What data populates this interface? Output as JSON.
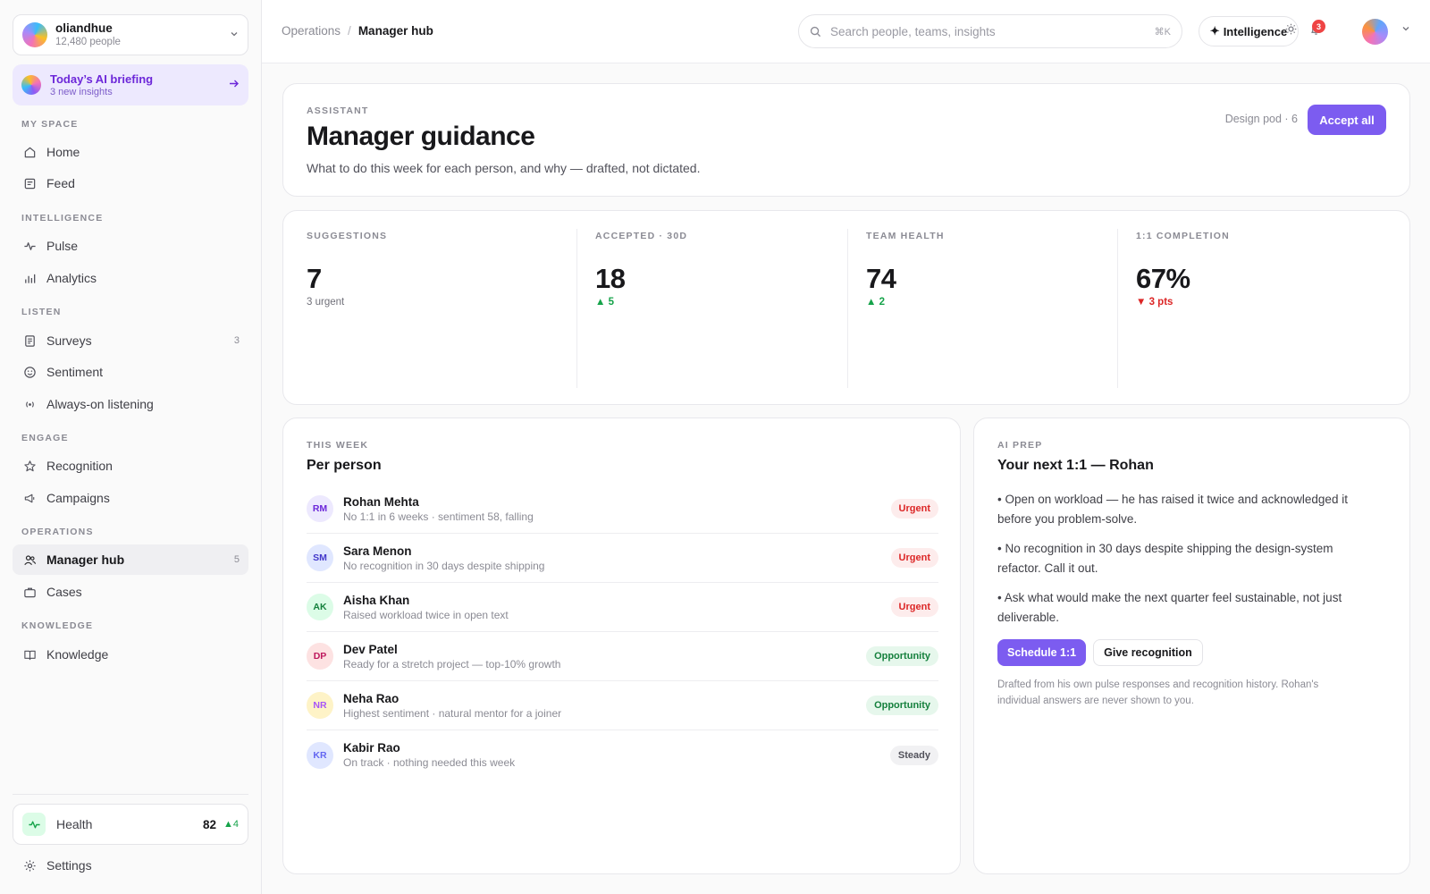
{
  "org": {
    "name": "oliandhue",
    "people": "12,480 people"
  },
  "briefing": {
    "title": "Today’s AI briefing",
    "subtitle": "3 new insights"
  },
  "sidebar": {
    "sections": {
      "my_space": "MY SPACE",
      "intelligence": "INTELLIGENCE",
      "listen": "LISTEN",
      "engage": "ENGAGE",
      "operations": "OPERATIONS",
      "knowledge": "KNOWLEDGE"
    },
    "items": {
      "home": "Home",
      "feed": "Feed",
      "pulse": "Pulse",
      "analytics": "Analytics",
      "surveys": "Surveys",
      "surveys_count": "3",
      "sentiment": "Sentiment",
      "always_on": "Always-on listening",
      "recognition": "Recognition",
      "campaigns": "Campaigns",
      "manager_hub": "Manager hub",
      "manager_hub_count": "5",
      "cases": "Cases",
      "knowledge": "Knowledge"
    },
    "health": {
      "label": "Health",
      "value": "82",
      "delta": "4"
    },
    "settings": "Settings"
  },
  "topbar": {
    "breadcrumb_parent": "Operations",
    "breadcrumb_sep": "/",
    "breadcrumb_current": "Manager hub",
    "search_placeholder": "Search people, teams, insights",
    "search_shortcut": "⌘K",
    "intelligence_label": "Intelligence",
    "notifications_count": "3"
  },
  "guidance": {
    "eyebrow": "ASSISTANT",
    "title": "Manager guidance",
    "description": "What to do this week for each person, and why — drafted, not dictated.",
    "pod": "Design pod · 6",
    "accept_all": "Accept all"
  },
  "stats": [
    {
      "label": "SUGGESTIONS",
      "value": "7",
      "sub": "3 urgent",
      "trend": "neutral"
    },
    {
      "label": "ACCEPTED · 30D",
      "value": "18",
      "sub": "▲ 5",
      "trend": "up"
    },
    {
      "label": "TEAM HEALTH",
      "value": "74",
      "sub": "▲ 2",
      "trend": "up"
    },
    {
      "label": "1:1 COMPLETION",
      "value": "67%",
      "sub": "▼ 3 pts",
      "trend": "down"
    }
  ],
  "per_person": {
    "eyebrow": "THIS WEEK",
    "title": "Per person",
    "people": [
      {
        "initials": "RM",
        "name": "Rohan Mehta",
        "desc": "No 1:1 in 6 weeks · sentiment 58, falling",
        "tag": "Urgent"
      },
      {
        "initials": "SM",
        "name": "Sara Menon",
        "desc": "No recognition in 30 days despite shipping",
        "tag": "Urgent"
      },
      {
        "initials": "AK",
        "name": "Aisha Khan",
        "desc": "Raised workload twice in open text",
        "tag": "Urgent"
      },
      {
        "initials": "DP",
        "name": "Dev Patel",
        "desc": "Ready for a stretch project — top-10% growth",
        "tag": "Opportunity"
      },
      {
        "initials": "NR",
        "name": "Neha Rao",
        "desc": "Highest sentiment · natural mentor for a joiner",
        "tag": "Opportunity"
      },
      {
        "initials": "KR",
        "name": "Kabir Rao",
        "desc": "On track · nothing needed this week",
        "tag": "Steady"
      }
    ]
  },
  "ai_prep": {
    "eyebrow": "AI PREP",
    "title": "Your next 1:1 — Rohan",
    "bullets": [
      "• Open on workload — he has raised it twice and acknowledged it before you problem-solve.",
      "• No recognition in 30 days despite shipping the design-system refactor. Call it out.",
      "• Ask what would make the next quarter feel sustainable, not just deliverable."
    ],
    "schedule": "Schedule 1:1",
    "give_recognition": "Give recognition",
    "note": "Drafted from his own pulse responses and recognition history. Rohan's individual answers are never shown to you."
  },
  "colors": {
    "accent": "#7c5cf0",
    "urgent": "#dc2626",
    "opportunity": "#15803d",
    "positive": "#16a34a"
  }
}
